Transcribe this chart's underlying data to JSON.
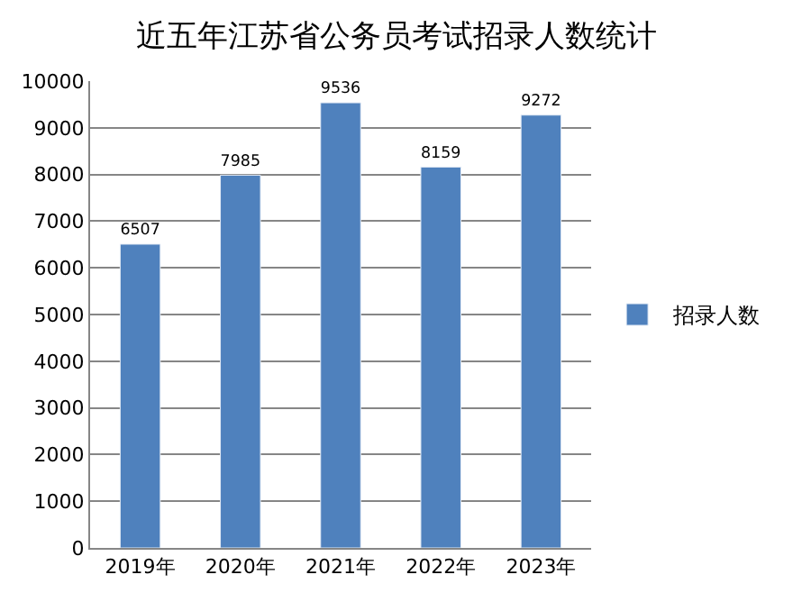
{
  "chart_data": {
    "type": "bar",
    "title": "近五年江苏省公务员考试招录人数统计",
    "categories": [
      "2019年",
      "2020年",
      "2021年",
      "2022年",
      "2023年"
    ],
    "series": [
      {
        "name": "招录人数",
        "color": "#4f81bd",
        "values": [
          6507,
          7985,
          9536,
          8159,
          9272
        ]
      }
    ],
    "ylim": [
      0,
      10000
    ],
    "yticks": [
      0,
      1000,
      2000,
      3000,
      4000,
      5000,
      6000,
      7000,
      8000,
      9000,
      10000
    ],
    "grid": "y",
    "legend": "right",
    "data_labels": true
  }
}
